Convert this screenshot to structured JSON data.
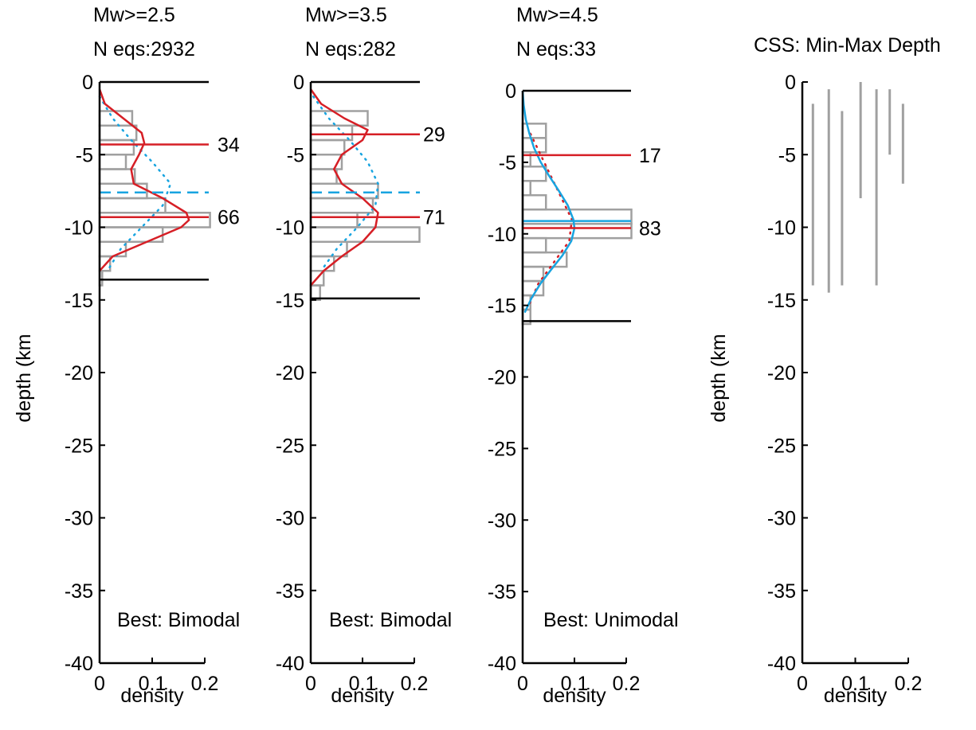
{
  "colors": {
    "axis": "#000000",
    "histogram": "#a0a0a0",
    "red_model": "#d61f26",
    "blue_model": "#18a4e0",
    "range_bar": "#a0a0a0"
  },
  "chart_data": [
    {
      "type": "histogram",
      "title_lines": [
        "Mw>=2.5",
        "N eqs:2932"
      ],
      "xlabel": "density",
      "ylabel": "depth (km",
      "xlim": [
        0,
        0.2
      ],
      "ylim": [
        -40,
        0
      ],
      "xticks": [
        "0",
        "0.1",
        "0.2"
      ],
      "yticks": [
        "0",
        "-5",
        "-10",
        "-15",
        "-20",
        "-25",
        "-30",
        "-35",
        "-40"
      ],
      "histogram_bins": [
        {
          "top": -2,
          "bottom": -3,
          "density": 0.062
        },
        {
          "top": -3,
          "bottom": -4,
          "density": 0.07
        },
        {
          "top": -4,
          "bottom": -5,
          "density": 0.065
        },
        {
          "top": -5,
          "bottom": -6,
          "density": 0.05
        },
        {
          "top": -6,
          "bottom": -7,
          "density": 0.067
        },
        {
          "top": -7,
          "bottom": -8,
          "density": 0.09
        },
        {
          "top": -8,
          "bottom": -9,
          "density": 0.125
        },
        {
          "top": -9,
          "bottom": -10,
          "density": 0.21
        },
        {
          "top": -10,
          "bottom": -11,
          "density": 0.12
        },
        {
          "top": -11,
          "bottom": -12,
          "density": 0.05
        },
        {
          "top": -12,
          "bottom": -13,
          "density": 0.02
        },
        {
          "top": -13,
          "bottom": -14,
          "density": 0.005
        }
      ],
      "red_solid_curve": {
        "depth": [
          -0.5,
          -1.5,
          -2.5,
          -3.5,
          -4.2,
          -5.0,
          -6.0,
          -7.0,
          -8.0,
          -9.0,
          -9.5,
          -10.0,
          -11.0,
          -12.0,
          -13.0
        ],
        "density": [
          0.0,
          0.01,
          0.045,
          0.08,
          0.085,
          0.075,
          0.06,
          0.065,
          0.12,
          0.165,
          0.17,
          0.155,
          0.09,
          0.025,
          0.0
        ]
      },
      "blue_dotted_curve": {
        "depth": [
          -1.0,
          -2.5,
          -4.0,
          -5.5,
          -7.0,
          -8.5,
          -10.0,
          -11.5,
          -13.0
        ],
        "density": [
          0.0,
          0.025,
          0.06,
          0.1,
          0.135,
          0.12,
          0.08,
          0.04,
          0.015
        ]
      },
      "horizontal_lines": [
        {
          "depth": 0,
          "style": "black"
        },
        {
          "depth": -13.6,
          "style": "black"
        },
        {
          "depth": -4.3,
          "style": "red"
        },
        {
          "depth": -9.3,
          "style": "red"
        },
        {
          "depth": -7.6,
          "style": "blue-dashed"
        }
      ],
      "percentile_labels": [
        {
          "depth": -4.3,
          "text": "34"
        },
        {
          "depth": -9.3,
          "text": "66"
        }
      ],
      "annotation": "Best: Bimodal"
    },
    {
      "type": "histogram",
      "title_lines": [
        "Mw>=3.5",
        "N eqs:282"
      ],
      "xlabel": "density",
      "ylabel": "",
      "xlim": [
        0,
        0.2
      ],
      "ylim": [
        -40,
        0
      ],
      "xticks": [
        "0",
        "0.1",
        "0.2"
      ],
      "yticks": [
        "0",
        "-5",
        "-10",
        "-15",
        "-20",
        "-25",
        "-30",
        "-35",
        "-40"
      ],
      "histogram_bins": [
        {
          "top": -2,
          "bottom": -3,
          "density": 0.11
        },
        {
          "top": -3,
          "bottom": -4,
          "density": 0.08
        },
        {
          "top": -4,
          "bottom": -5,
          "density": 0.065
        },
        {
          "top": -5,
          "bottom": -6,
          "density": 0.06
        },
        {
          "top": -6,
          "bottom": -7,
          "density": 0.05
        },
        {
          "top": -7,
          "bottom": -8,
          "density": 0.13
        },
        {
          "top": -8,
          "bottom": -9,
          "density": 0.12
        },
        {
          "top": -9,
          "bottom": -10,
          "density": 0.09
        },
        {
          "top": -10,
          "bottom": -11,
          "density": 0.21
        },
        {
          "top": -11,
          "bottom": -12,
          "density": 0.07
        },
        {
          "top": -12,
          "bottom": -13,
          "density": 0.045
        },
        {
          "top": -13,
          "bottom": -14,
          "density": 0.025
        },
        {
          "top": -14,
          "bottom": -15,
          "density": 0.018
        }
      ],
      "red_solid_curve": {
        "depth": [
          -0.5,
          -1.5,
          -2.5,
          -3.3,
          -4.0,
          -5.0,
          -6.0,
          -7.0,
          -8.0,
          -9.0,
          -10.0,
          -11.0,
          -12.0,
          -13.0,
          -14.0
        ],
        "density": [
          0.0,
          0.02,
          0.065,
          0.11,
          0.1,
          0.06,
          0.045,
          0.06,
          0.1,
          0.13,
          0.125,
          0.1,
          0.06,
          0.025,
          0.0
        ]
      },
      "blue_dotted_curve": {
        "depth": [
          -1.0,
          -2.5,
          -4.0,
          -5.5,
          -7.0,
          -8.5,
          -10.0,
          -11.5,
          -13.0
        ],
        "density": [
          0.005,
          0.035,
          0.075,
          0.11,
          0.13,
          0.125,
          0.09,
          0.05,
          0.02
        ]
      },
      "horizontal_lines": [
        {
          "depth": 0,
          "style": "black"
        },
        {
          "depth": -14.9,
          "style": "black"
        },
        {
          "depth": -3.6,
          "style": "red"
        },
        {
          "depth": -9.3,
          "style": "red"
        },
        {
          "depth": -7.6,
          "style": "blue-dashed"
        }
      ],
      "percentile_labels": [
        {
          "depth": -3.6,
          "text": "29"
        },
        {
          "depth": -9.3,
          "text": "71"
        }
      ],
      "annotation": "Best: Bimodal"
    },
    {
      "type": "histogram",
      "title_lines": [
        "Mw>=4.5",
        "N eqs:33"
      ],
      "xlabel": "density",
      "ylabel": "",
      "xlim": [
        0,
        0.2
      ],
      "ylim": [
        -40,
        0
      ],
      "xticks": [
        "0",
        "0.1",
        "0.2"
      ],
      "yticks": [
        "0",
        "-5",
        "-10",
        "-15",
        "-20",
        "-25",
        "-30",
        "-35",
        "-40"
      ],
      "histogram_bins": [
        {
          "top": -2.3,
          "bottom": -3.3,
          "density": 0.045
        },
        {
          "top": -3.3,
          "bottom": -4.3,
          "density": 0.045
        },
        {
          "top": -4.3,
          "bottom": -5.3,
          "density": 0.015
        },
        {
          "top": -5.3,
          "bottom": -6.3,
          "density": 0.045
        },
        {
          "top": -6.3,
          "bottom": -7.3,
          "density": 0.015
        },
        {
          "top": -7.3,
          "bottom": -8.3,
          "density": 0.045
        },
        {
          "top": -8.3,
          "bottom": -9.3,
          "density": 0.21
        },
        {
          "top": -9.3,
          "bottom": -10.3,
          "density": 0.21
        },
        {
          "top": -10.3,
          "bottom": -11.3,
          "density": 0.045
        },
        {
          "top": -11.3,
          "bottom": -12.3,
          "density": 0.085
        },
        {
          "top": -12.3,
          "bottom": -13.3,
          "density": 0.04
        },
        {
          "top": -13.3,
          "bottom": -14.3,
          "density": 0.04
        },
        {
          "top": -14.3,
          "bottom": -15.3,
          "density": 0.015
        },
        {
          "top": -15.3,
          "bottom": -16.3,
          "density": 0.015
        }
      ],
      "blue_solid_curve": {
        "depth": [
          0.0,
          -1.0,
          -2.0,
          -3.0,
          -4.0,
          -5.0,
          -6.0,
          -7.0,
          -8.0,
          -9.0,
          -9.6,
          -10.5,
          -11.5,
          -12.5,
          -13.5,
          -14.5,
          -15.5
        ],
        "density": [
          0.0,
          0.002,
          0.006,
          0.013,
          0.022,
          0.035,
          0.052,
          0.07,
          0.087,
          0.098,
          0.1,
          0.094,
          0.077,
          0.055,
          0.034,
          0.017,
          0.004
        ]
      },
      "red_dotted_curve": {
        "depth": [
          -3.0,
          -4.5,
          -6.0,
          -7.5,
          -9.0,
          -10.5,
          -12.0,
          -13.5,
          -15.0
        ],
        "density": [
          0.015,
          0.035,
          0.055,
          0.075,
          0.095,
          0.09,
          0.06,
          0.03,
          0.012
        ]
      },
      "horizontal_lines": [
        {
          "depth": 0,
          "style": "black"
        },
        {
          "depth": -16.1,
          "style": "black"
        },
        {
          "depth": -4.5,
          "style": "red"
        },
        {
          "depth": -9.6,
          "style": "red"
        },
        {
          "depth": -9.1,
          "style": "blue-solid"
        }
      ],
      "percentile_labels": [
        {
          "depth": -4.5,
          "text": "17"
        },
        {
          "depth": -9.6,
          "text": "83"
        }
      ],
      "annotation": "Best: Unimodal"
    },
    {
      "type": "range_bars",
      "title": "CSS: Min-Max Depth",
      "xlabel": "density",
      "ylabel": "depth (km",
      "xlim": [
        0,
        0.2
      ],
      "ylim": [
        -40,
        0
      ],
      "xticks": [
        "0",
        "0.1",
        "0.2"
      ],
      "yticks": [
        "0",
        "-5",
        "-10",
        "-15",
        "-20",
        "-25",
        "-30",
        "-35",
        "-40"
      ],
      "bars": [
        {
          "x": 0.02,
          "min": -14.0,
          "max": -1.5
        },
        {
          "x": 0.05,
          "min": -14.5,
          "max": -0.5
        },
        {
          "x": 0.075,
          "min": -14.0,
          "max": -2.0
        },
        {
          "x": 0.11,
          "min": -8.0,
          "max": 0.0
        },
        {
          "x": 0.14,
          "min": -14.0,
          "max": -0.5
        },
        {
          "x": 0.165,
          "min": -5.0,
          "max": -0.5
        },
        {
          "x": 0.19,
          "min": -7.0,
          "max": -1.5
        }
      ]
    }
  ]
}
